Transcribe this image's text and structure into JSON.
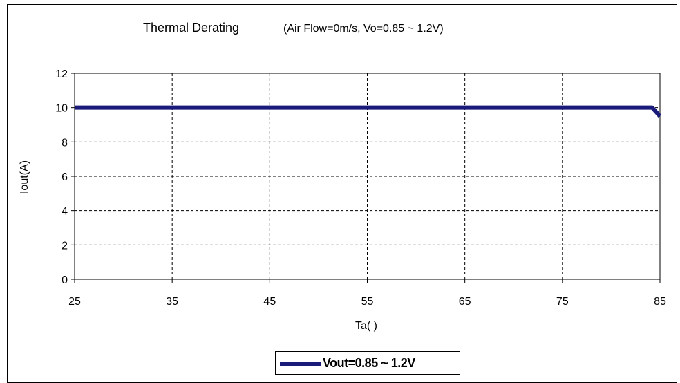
{
  "chart_data": {
    "type": "line",
    "title": "Thermal Derating",
    "subtitle": "(Air Flow=0m/s, Vo=0.85 ~ 1.2V)",
    "xlabel": "Ta(    )",
    "ylabel": "Iout(A)",
    "xlim": [
      25,
      85
    ],
    "ylim": [
      0,
      12
    ],
    "xticks": [
      25,
      35,
      45,
      55,
      65,
      75,
      85
    ],
    "yticks": [
      0,
      2,
      4,
      6,
      8,
      10,
      12
    ],
    "grid": true,
    "legend_position": "bottom-center",
    "series": [
      {
        "name": "Vout=0.85 ~ 1.2V",
        "color": "#1a1a7a",
        "x": [
          25,
          84.2,
          85
        ],
        "y": [
          10,
          10,
          9.5
        ]
      }
    ]
  }
}
